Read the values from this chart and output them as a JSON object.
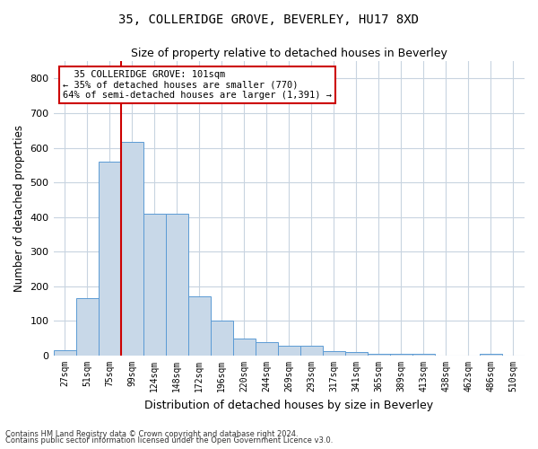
{
  "title1": "35, COLLERIDGE GROVE, BEVERLEY, HU17 8XD",
  "title2": "Size of property relative to detached houses in Beverley",
  "xlabel": "Distribution of detached houses by size in Beverley",
  "ylabel": "Number of detached properties",
  "footnote1": "Contains HM Land Registry data © Crown copyright and database right 2024.",
  "footnote2": "Contains public sector information licensed under the Open Government Licence v3.0.",
  "bin_labels": [
    "27sqm",
    "51sqm",
    "75sqm",
    "99sqm",
    "124sqm",
    "148sqm",
    "172sqm",
    "196sqm",
    "220sqm",
    "244sqm",
    "269sqm",
    "293sqm",
    "317sqm",
    "341sqm",
    "365sqm",
    "389sqm",
    "413sqm",
    "438sqm",
    "462sqm",
    "486sqm",
    "510sqm"
  ],
  "bar_heights": [
    15,
    165,
    560,
    618,
    410,
    410,
    170,
    100,
    50,
    38,
    28,
    28,
    12,
    10,
    5,
    5,
    5,
    0,
    0,
    5,
    0
  ],
  "bar_color": "#c8d8e8",
  "bar_edge_color": "#5b9bd5",
  "annotation_text": "  35 COLLERIDGE GROVE: 101sqm\n← 35% of detached houses are smaller (770)\n64% of semi-detached houses are larger (1,391) →",
  "vline_color": "#cc0000",
  "annotation_box_color": "#cc0000",
  "ylim": [
    0,
    850
  ],
  "yticks": [
    0,
    100,
    200,
    300,
    400,
    500,
    600,
    700,
    800
  ],
  "background_color": "#ffffff",
  "grid_color": "#c8d4e0"
}
